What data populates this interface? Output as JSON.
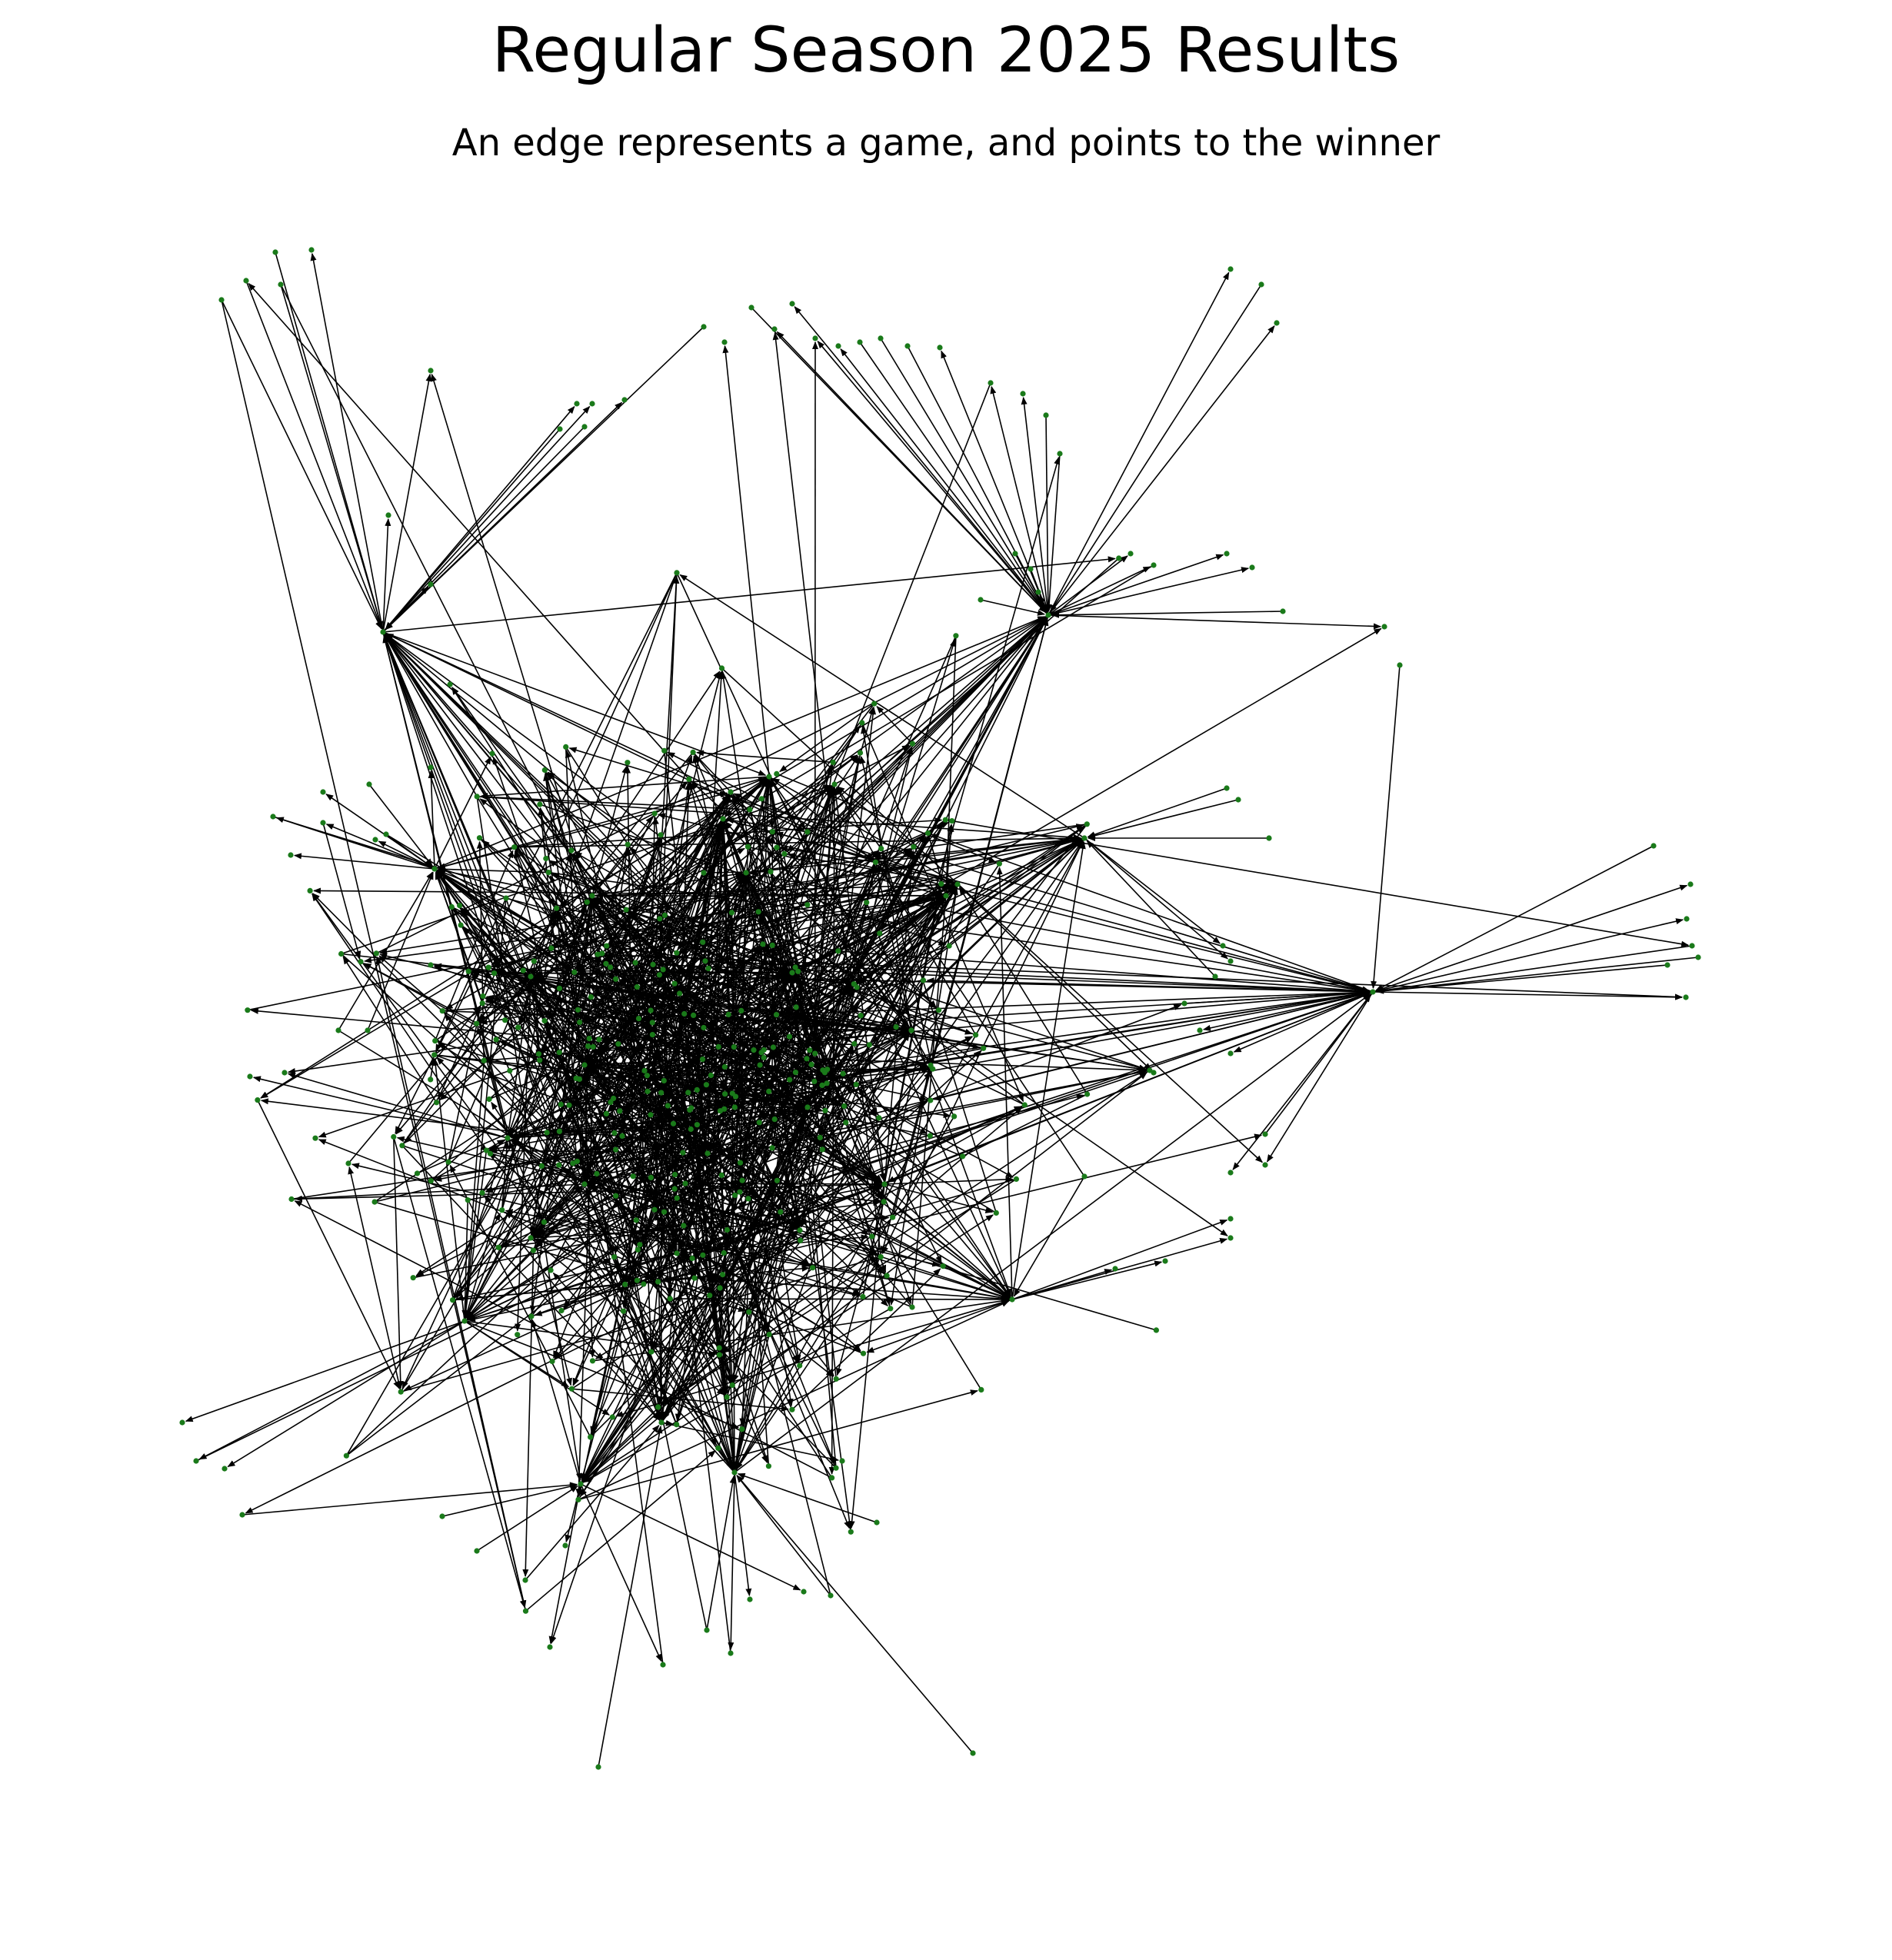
{
  "figure": {
    "title": "Regular Season 2025 Results",
    "subtitle": "An edge represents a game, and points to the winner"
  },
  "graph": {
    "type": "directed-network",
    "node_color": "#1a7a1a",
    "edge_color": "#000000",
    "arrowhead_color": "#000000",
    "background": "#ffffff",
    "node_labels_shown": false
  }
}
